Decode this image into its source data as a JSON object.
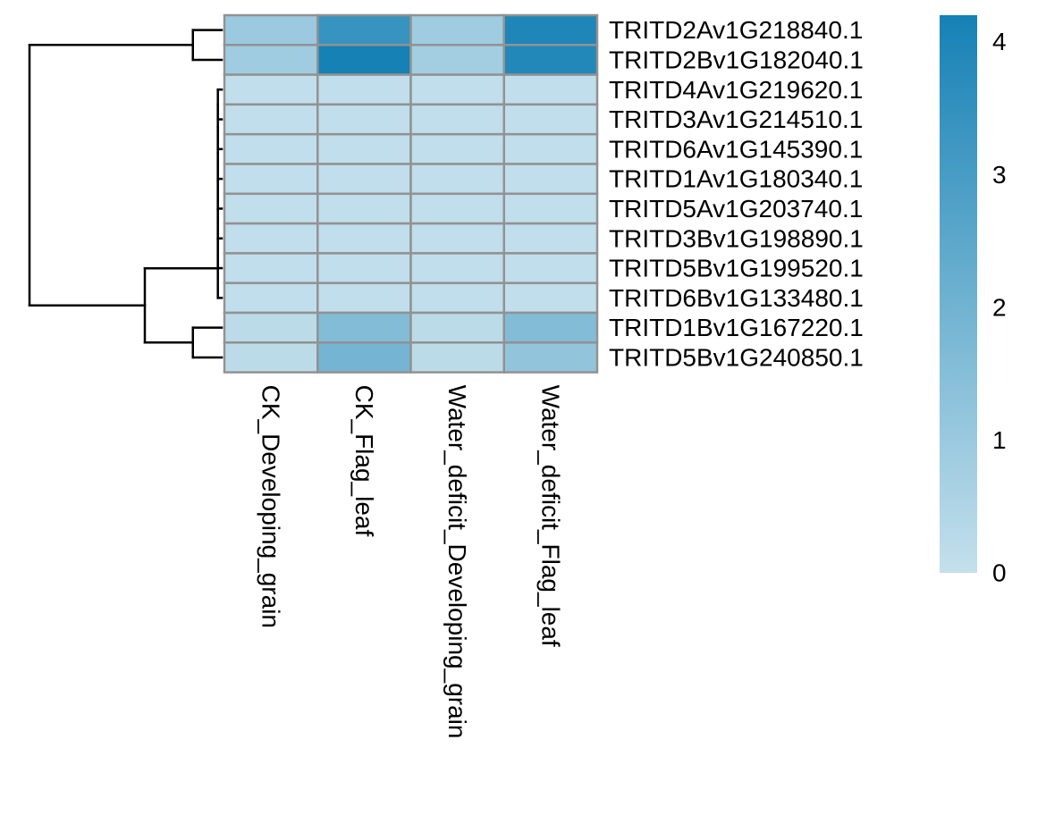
{
  "chart_data": {
    "type": "heatmap",
    "title": "",
    "xlabel": "",
    "ylabel": "",
    "columns": [
      "CK_Developing_grain",
      "CK_Flag_leaf",
      "Water_deficit_Developing_grain",
      "Water_deficit_Flag_leaf"
    ],
    "rows": [
      "TRITD2Av1G218840.1",
      "TRITD2Bv1G182040.1",
      "TRITD4Av1G219620.1",
      "TRITD3Av1G214510.1",
      "TRITD6Av1G145390.1",
      "TRITD1Av1G180340.1",
      "TRITD5Av1G203740.1",
      "TRITD3Bv1G198890.1",
      "TRITD5Bv1G199520.1",
      "TRITD6Bv1G133480.1",
      "TRITD1Bv1G167220.1",
      "TRITD5Bv1G240850.1"
    ],
    "values": [
      [
        1.0,
        3.4,
        0.9,
        4.0
      ],
      [
        0.9,
        4.2,
        0.8,
        3.9
      ],
      [
        0.1,
        0.1,
        0.1,
        0.1
      ],
      [
        0.1,
        0.1,
        0.1,
        0.1
      ],
      [
        0.1,
        0.1,
        0.1,
        0.1
      ],
      [
        0.1,
        0.1,
        0.1,
        0.1
      ],
      [
        0.1,
        0.1,
        0.1,
        0.1
      ],
      [
        0.1,
        0.1,
        0.1,
        0.1
      ],
      [
        0.1,
        0.1,
        0.1,
        0.1
      ],
      [
        0.1,
        0.1,
        0.1,
        0.1
      ],
      [
        0.2,
        1.6,
        0.2,
        1.6
      ],
      [
        0.2,
        1.9,
        0.2,
        1.2
      ]
    ],
    "color_scale": {
      "min": 0,
      "max": 4.2,
      "low_color": "#c4e0ec",
      "high_color": "#1681b5",
      "ticks": [
        0,
        1,
        2,
        3,
        4
      ]
    },
    "cell_border_color": "#929292",
    "dendrogram": {
      "side": "left",
      "leaf_order": [
        0,
        1,
        2,
        3,
        4,
        5,
        6,
        7,
        8,
        9,
        10,
        11
      ],
      "merges": [
        {
          "a": "leaf-2",
          "b": "leaf-3",
          "height": 0.02
        },
        {
          "a": "node-0",
          "b": "leaf-4",
          "height": 0.02
        },
        {
          "a": "node-1",
          "b": "leaf-5",
          "height": 0.02
        },
        {
          "a": "node-2",
          "b": "leaf-6",
          "height": 0.02
        },
        {
          "a": "node-3",
          "b": "leaf-7",
          "height": 0.02
        },
        {
          "a": "node-4",
          "b": "leaf-8",
          "height": 0.02
        },
        {
          "a": "node-5",
          "b": "leaf-9",
          "height": 0.02
        },
        {
          "a": "leaf-0",
          "b": "leaf-1",
          "height": 0.15
        },
        {
          "a": "leaf-10",
          "b": "leaf-11",
          "height": 0.15
        },
        {
          "a": "node-6",
          "b": "node-8",
          "height": 0.4
        },
        {
          "a": "node-7",
          "b": "node-9",
          "height": 1.0
        }
      ]
    },
    "legend": {
      "placement": "right",
      "orientation": "vertical"
    }
  }
}
